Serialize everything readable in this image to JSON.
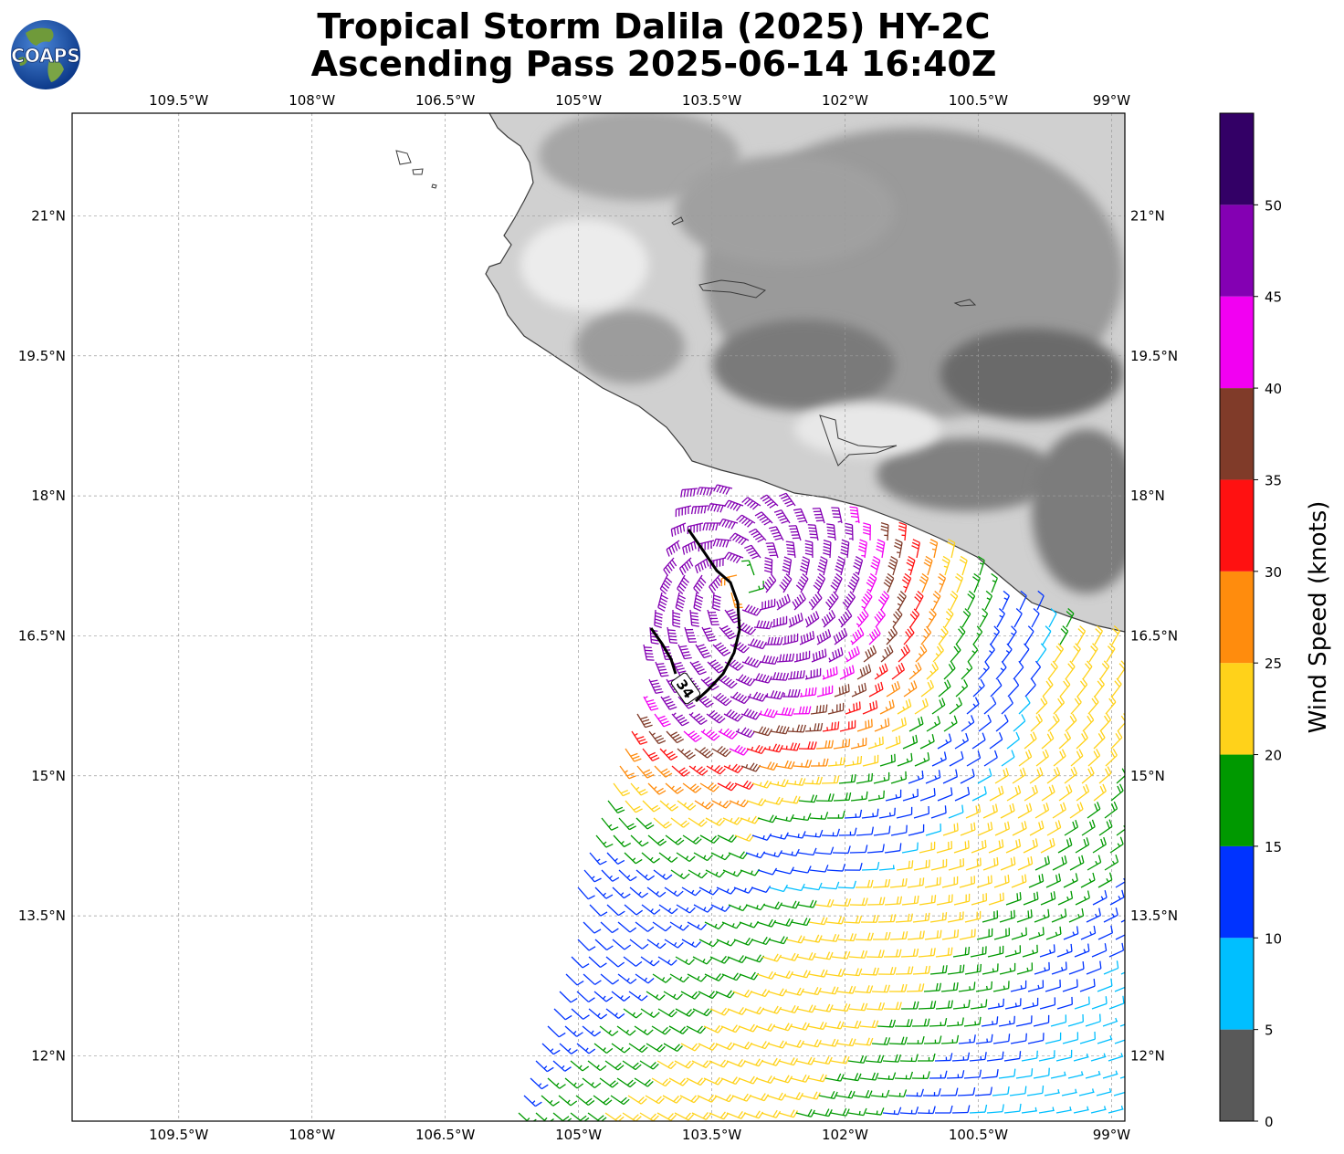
{
  "title": {
    "line1": "Tropical Storm Dalila (2025) HY-2C",
    "line2": "Ascending Pass 2025-06-14 16:40Z"
  },
  "logo": {
    "text": "COAPS"
  },
  "map": {
    "lon_range": [
      -110.7,
      -98.85
    ],
    "lat_range": [
      11.3,
      22.1
    ],
    "lon_ticks": [
      {
        "value": -109.5,
        "label": "109.5°W"
      },
      {
        "value": -108.0,
        "label": "108°W"
      },
      {
        "value": -106.5,
        "label": "106.5°W"
      },
      {
        "value": -105.0,
        "label": "105°W"
      },
      {
        "value": -103.5,
        "label": "103.5°W"
      },
      {
        "value": -102.0,
        "label": "102°W"
      },
      {
        "value": -100.5,
        "label": "100.5°W"
      },
      {
        "value": -99.0,
        "label": "99°W"
      }
    ],
    "lat_ticks": [
      {
        "value": 21.0,
        "label": "21°N"
      },
      {
        "value": 19.5,
        "label": "19.5°N"
      },
      {
        "value": 18.0,
        "label": "18°N"
      },
      {
        "value": 16.5,
        "label": "16.5°N"
      },
      {
        "value": 15.0,
        "label": "15°N"
      },
      {
        "value": 13.5,
        "label": "13.5°N"
      },
      {
        "value": 12.0,
        "label": "12°N"
      }
    ],
    "gridlines": true,
    "terrain_shading": "grayscale elevation over Mexico",
    "contour": {
      "label": "34",
      "description": "34-knot wind radius contour"
    },
    "storm_center": [
      -103.15,
      17.05
    ]
  },
  "colorbar": {
    "label": "Wind Speed (knots)",
    "bins": [
      {
        "from": 0,
        "to": 5,
        "color": "#595959"
      },
      {
        "from": 5,
        "to": 10,
        "color": "#00bfff"
      },
      {
        "from": 10,
        "to": 15,
        "color": "#0033ff"
      },
      {
        "from": 15,
        "to": 20,
        "color": "#009900"
      },
      {
        "from": 20,
        "to": 25,
        "color": "#ffd21a"
      },
      {
        "from": 25,
        "to": 30,
        "color": "#ff8c0d"
      },
      {
        "from": 30,
        "to": 35,
        "color": "#ff1111"
      },
      {
        "from": 35,
        "to": 40,
        "color": "#803b29"
      },
      {
        "from": 40,
        "to": 45,
        "color": "#f200f2"
      },
      {
        "from": 45,
        "to": 50,
        "color": "#8400b3"
      },
      {
        "from": 50,
        "to": 55,
        "color": "#330066"
      }
    ],
    "tick_labels": [
      "0",
      "5",
      "10",
      "15",
      "20",
      "25",
      "30",
      "35",
      "40",
      "45",
      "50"
    ]
  }
}
